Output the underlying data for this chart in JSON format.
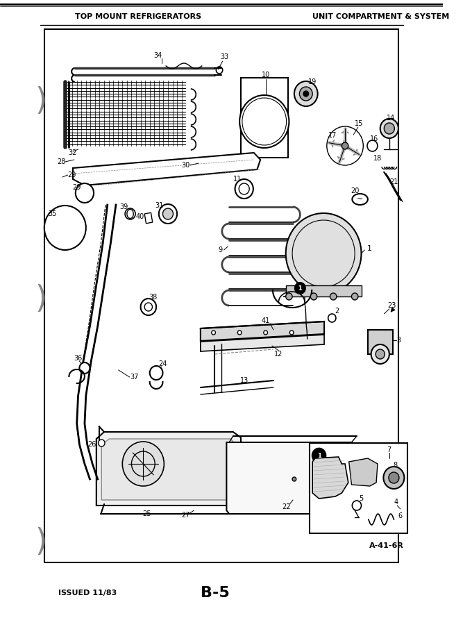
{
  "title_left": "TOP MOUNT REFRIGERATORS",
  "title_right": "UNIT COMPARTMENT & SYSTEM",
  "footer_left": "ISSUED 11/83",
  "footer_center": "B-5",
  "diagram_ref": "A-41-6R",
  "bg_color": "#ffffff",
  "border_color": "#000000",
  "text_color": "#000000",
  "figure_width": 6.8,
  "figure_height": 8.9,
  "dpi": 100
}
